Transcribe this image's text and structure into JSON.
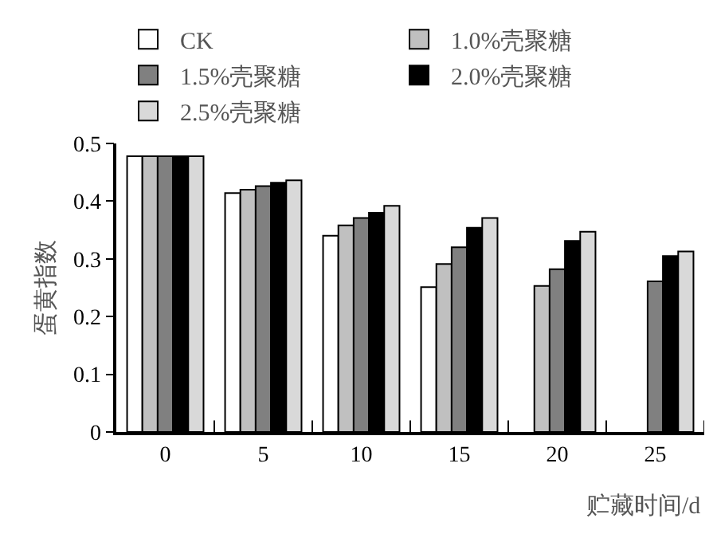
{
  "chart_data": {
    "type": "bar",
    "xlabel": "贮藏时间/d",
    "ylabel": "蛋黄指数",
    "categories": [
      "0",
      "5",
      "10",
      "15",
      "20",
      "25"
    ],
    "series": [
      {
        "name": "CK",
        "color": "#ffffff",
        "values": [
          0.478,
          0.414,
          0.34,
          0.251,
          null,
          null
        ]
      },
      {
        "name": "1.0%壳聚糖",
        "color": "#c0c0c0",
        "values": [
          0.478,
          0.42,
          0.358,
          0.291,
          0.253,
          null
        ]
      },
      {
        "name": "1.5%壳聚糖",
        "color": "#808080",
        "values": [
          0.478,
          0.426,
          0.371,
          0.32,
          0.282,
          0.261
        ]
      },
      {
        "name": "2.0%壳聚糖",
        "color": "#000000",
        "values": [
          0.478,
          0.432,
          0.38,
          0.354,
          0.331,
          0.305
        ]
      },
      {
        "name": "2.5%壳聚糖",
        "color": "#d9d9d9",
        "values": [
          0.478,
          0.436,
          0.392,
          0.371,
          0.347,
          0.313
        ]
      }
    ],
    "ylim": [
      0,
      0.5
    ],
    "yticks": [
      0,
      0.1,
      0.2,
      0.3,
      0.4,
      0.5
    ],
    "grid": false,
    "legend": "top"
  }
}
